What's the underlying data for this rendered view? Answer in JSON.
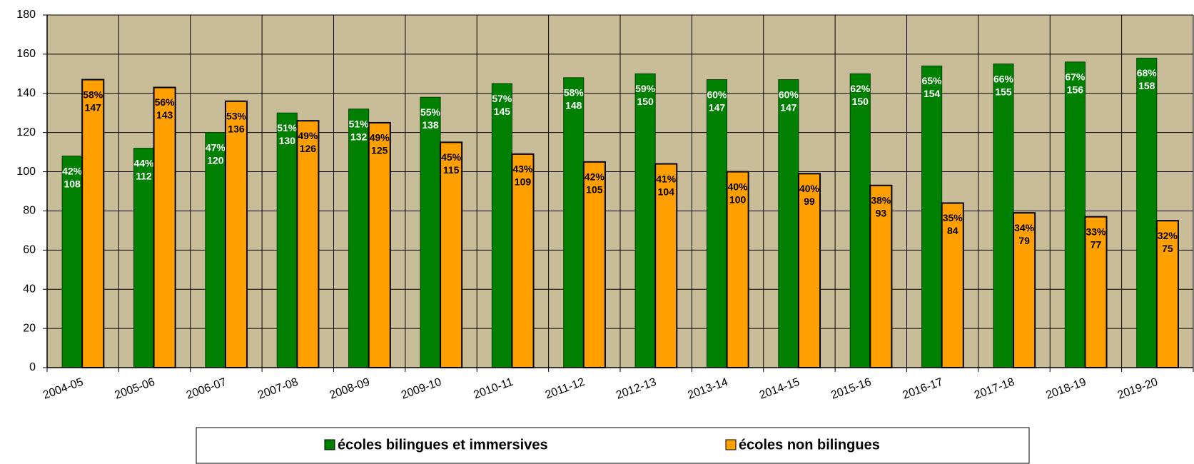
{
  "chart_data": {
    "type": "bar",
    "categories": [
      "2004-05",
      "2005-06",
      "2006-07",
      "2007-08",
      "2008-09",
      "2009-10",
      "2010-11",
      "2011-12",
      "2012-13",
      "2013-14",
      "2014-15",
      "2015-16",
      "2016-17",
      "2017-18",
      "2018-19",
      "2019-20"
    ],
    "series": [
      {
        "name": "écoles bilingues et immersives",
        "color": "#008000",
        "values": [
          108,
          112,
          120,
          130,
          132,
          138,
          145,
          148,
          150,
          147,
          147,
          150,
          154,
          155,
          156,
          158
        ],
        "share_labels": [
          "42%",
          "44%",
          "47%",
          "51%",
          "51%",
          "55%",
          "57%",
          "58%",
          "59%",
          "60%",
          "60%",
          "62%",
          "65%",
          "66%",
          "67%",
          "68%"
        ]
      },
      {
        "name": "écoles non bilingues",
        "color": "#ffa000",
        "values": [
          147,
          143,
          136,
          126,
          125,
          115,
          109,
          105,
          104,
          100,
          99,
          93,
          84,
          79,
          77,
          75
        ],
        "share_labels": [
          "58%",
          "56%",
          "53%",
          "49%",
          "49%",
          "45%",
          "43%",
          "42%",
          "41%",
          "40%",
          "40%",
          "38%",
          "35%",
          "34%",
          "33%",
          "32%"
        ]
      }
    ],
    "ylim": [
      0,
      180
    ],
    "yticks": [
      0,
      20,
      40,
      60,
      80,
      100,
      120,
      140,
      160,
      180
    ],
    "grid": true
  }
}
